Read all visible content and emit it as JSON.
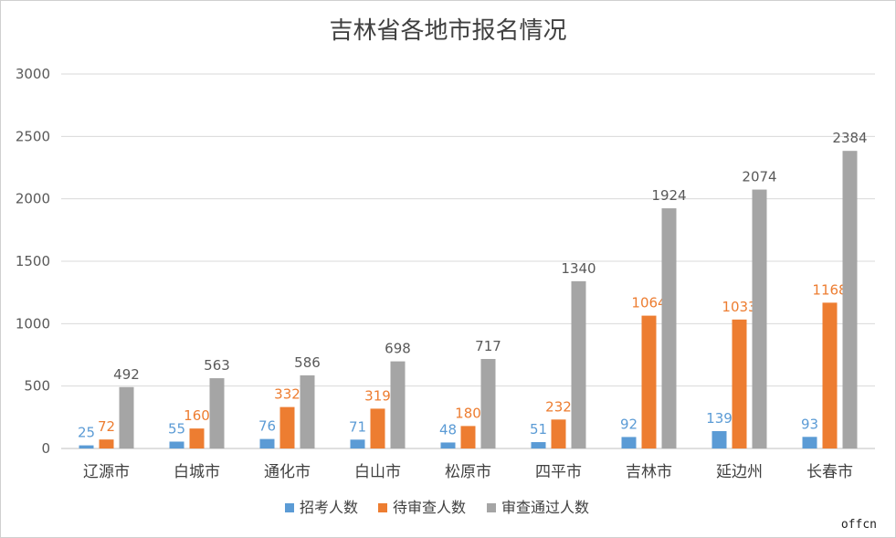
{
  "chart_data": {
    "type": "bar",
    "title": "吉林省各地市报名情况",
    "categories": [
      "辽源市",
      "白城市",
      "通化市",
      "白山市",
      "松原市",
      "四平市",
      "吉林市",
      "延边州",
      "长春市"
    ],
    "series": [
      {
        "name": "招考人数",
        "color": "#5b9bd5",
        "values": [
          25,
          55,
          76,
          71,
          48,
          51,
          92,
          139,
          93
        ]
      },
      {
        "name": "待审查人数",
        "color": "#ed7d31",
        "values": [
          72,
          160,
          332,
          319,
          180,
          232,
          1064,
          1033,
          1168
        ]
      },
      {
        "name": "审查通过人数",
        "color": "#a5a5a5",
        "values": [
          492,
          563,
          586,
          698,
          717,
          1340,
          1924,
          2074,
          2384
        ]
      }
    ],
    "ylim": [
      0,
      3000
    ],
    "yticks": [
      0,
      500,
      1000,
      1500,
      2000,
      2500,
      3000
    ],
    "grid": true,
    "legend": "bottom",
    "label_colors": [
      "#5b9bd5",
      "#ed7d31",
      "#595959"
    ]
  },
  "watermark": {
    "text": "offcn"
  }
}
